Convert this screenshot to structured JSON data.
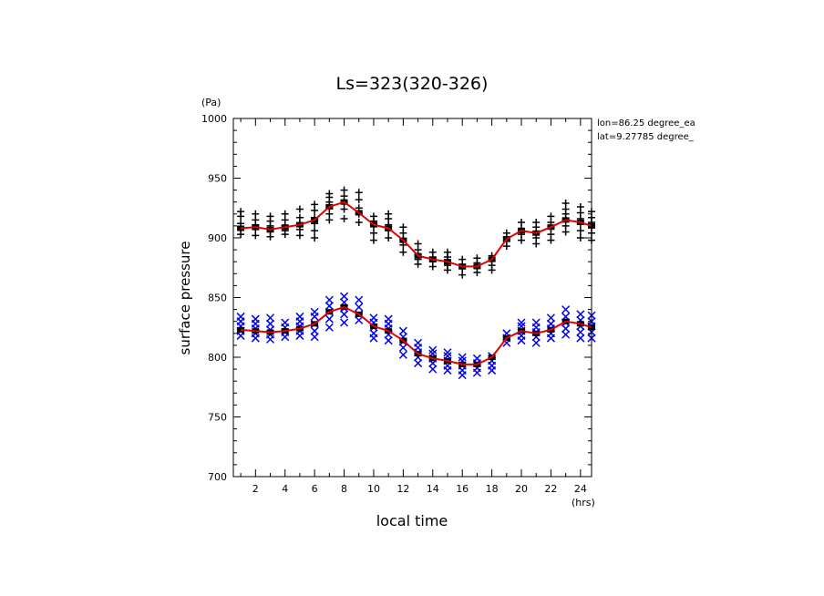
{
  "chart_data": {
    "type": "scatter",
    "title": "Ls=323(320-326)",
    "xlabel": "local time",
    "ylabel": "surface pressure",
    "x_unit": "(hrs)",
    "y_unit": "(Pa)",
    "annotations": [
      "lon=86.25 degree_ea",
      "lat=9.27785 degree_"
    ],
    "xlim": [
      0.5,
      24.75
    ],
    "ylim": [
      700,
      1000
    ],
    "x_ticks": [
      2,
      4,
      6,
      8,
      10,
      12,
      14,
      16,
      18,
      20,
      22,
      24
    ],
    "y_ticks": [
      700,
      750,
      800,
      850,
      900,
      950,
      1000
    ],
    "grid": false,
    "colors": {
      "upper_markers": "#000000",
      "lower_markers": "#0000ee",
      "mean_line": "#e00000"
    },
    "x": [
      1,
      2,
      3,
      4,
      5,
      6,
      7,
      8,
      9,
      10,
      11,
      12,
      13,
      14,
      15,
      16,
      17,
      18,
      19,
      20,
      21,
      22,
      23,
      24,
      24.75
    ],
    "series": [
      {
        "marker": "plus",
        "mean": [
          908,
          909,
          907,
          909,
          911,
          915,
          926,
          930,
          921,
          911,
          908,
          898,
          885,
          882,
          880,
          876,
          876,
          882,
          899,
          906,
          904,
          909,
          915,
          913,
          910
        ],
        "values": [
          [
            903,
            908,
            912,
            918,
            922
          ],
          [
            902,
            907,
            911,
            915,
            920
          ],
          [
            901,
            905,
            910,
            914,
            918
          ],
          [
            903,
            906,
            910,
            915,
            920
          ],
          [
            902,
            907,
            912,
            917,
            924
          ],
          [
            900,
            906,
            912,
            917,
            923,
            928
          ],
          [
            915,
            920,
            925,
            930,
            934,
            937
          ],
          [
            916,
            924,
            930,
            935,
            940
          ],
          [
            913,
            920,
            925,
            932,
            938
          ],
          [
            898,
            904,
            910,
            914,
            918
          ],
          [
            900,
            906,
            911,
            916,
            920
          ],
          [
            888,
            894,
            899,
            904,
            909
          ],
          [
            878,
            882,
            886,
            890,
            895
          ],
          [
            876,
            880,
            884,
            888
          ],
          [
            873,
            877,
            881,
            884,
            888
          ],
          [
            869,
            874,
            878,
            882
          ],
          [
            871,
            875,
            879,
            883
          ],
          [
            873,
            877,
            881,
            885
          ],
          [
            893,
            897,
            901,
            904
          ],
          [
            898,
            903,
            908,
            913
          ],
          [
            895,
            900,
            904,
            909,
            913
          ],
          [
            898,
            903,
            908,
            913,
            918
          ],
          [
            905,
            910,
            915,
            920,
            924,
            929
          ],
          [
            900,
            906,
            912,
            916,
            921,
            926
          ],
          [
            898,
            904,
            909,
            913,
            917,
            922
          ]
        ]
      },
      {
        "marker": "x",
        "mean": [
          823,
          822,
          821,
          822,
          824,
          828,
          838,
          842,
          836,
          826,
          822,
          814,
          803,
          799,
          797,
          794,
          794,
          800,
          816,
          822,
          820,
          823,
          830,
          828,
          825
        ],
        "values": [
          [
            818,
            822,
            826,
            830,
            834
          ],
          [
            816,
            820,
            824,
            828,
            832
          ],
          [
            815,
            819,
            823,
            828,
            833
          ],
          [
            817,
            821,
            825,
            829
          ],
          [
            818,
            822,
            826,
            830,
            834
          ],
          [
            817,
            822,
            828,
            834,
            838
          ],
          [
            825,
            832,
            838,
            843,
            848
          ],
          [
            829,
            836,
            841,
            846,
            851
          ],
          [
            831,
            836,
            842,
            848
          ],
          [
            816,
            820,
            825,
            829,
            833
          ],
          [
            814,
            819,
            824,
            828,
            832
          ],
          [
            802,
            808,
            813,
            817,
            822
          ],
          [
            795,
            800,
            804,
            808,
            812
          ],
          [
            790,
            795,
            799,
            803,
            806
          ],
          [
            789,
            793,
            797,
            801,
            804
          ],
          [
            785,
            789,
            793,
            797,
            800
          ],
          [
            787,
            791,
            795,
            799
          ],
          [
            789,
            793,
            797,
            801
          ],
          [
            812,
            816,
            820
          ],
          [
            814,
            818,
            822,
            826,
            829
          ],
          [
            812,
            817,
            821,
            825,
            829
          ],
          [
            816,
            820,
            824,
            828,
            833
          ],
          [
            819,
            824,
            829,
            834,
            840
          ],
          [
            816,
            821,
            826,
            831,
            836
          ],
          [
            816,
            821,
            826,
            830,
            835
          ]
        ]
      }
    ]
  }
}
